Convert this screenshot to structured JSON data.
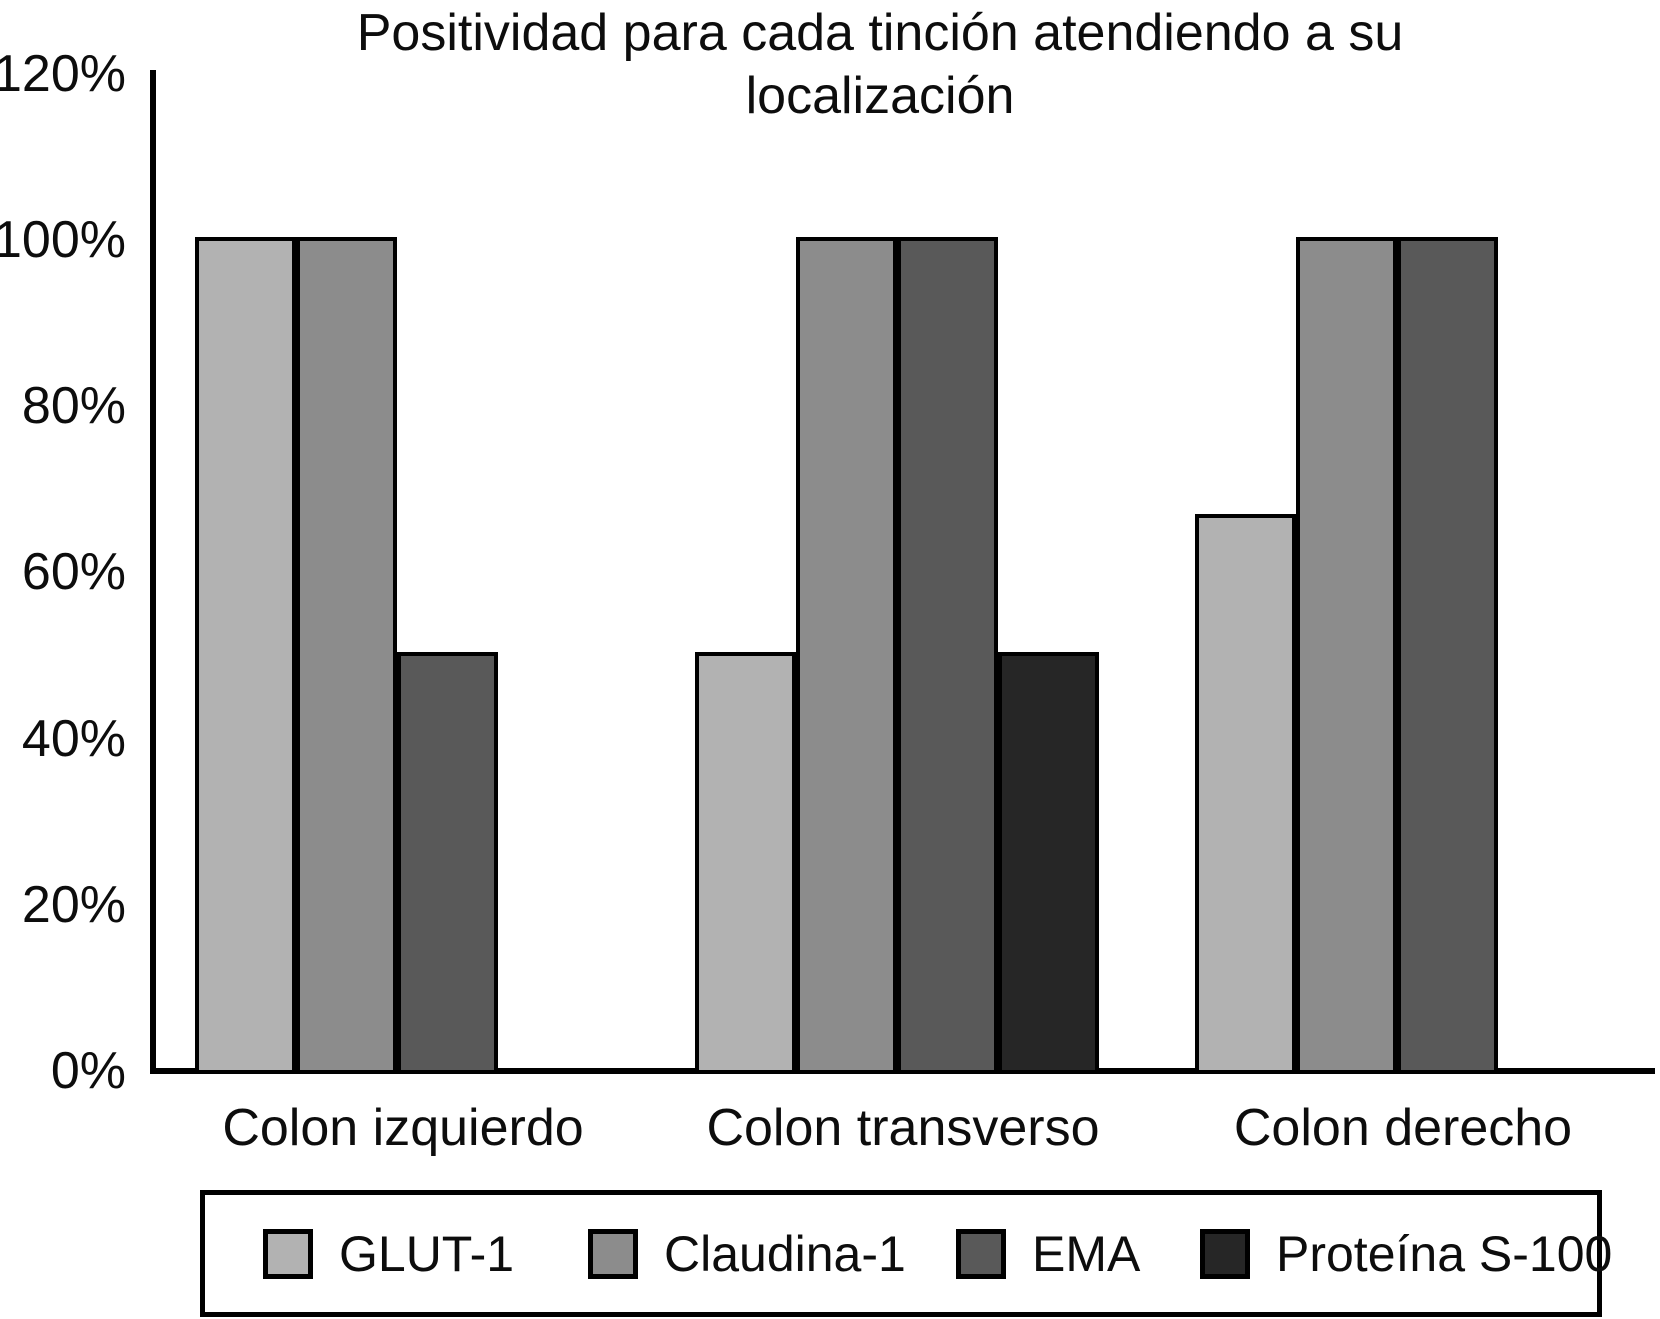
{
  "chart_data": {
    "type": "bar",
    "title": "Positividad para cada tinción atendiendo a su localización",
    "categories": [
      "Colon izquierdo",
      "Colon transverso",
      "Colon derecho"
    ],
    "series": [
      {
        "name": "GLUT-1",
        "color": "#b2b2b2",
        "values": [
          100,
          50,
          66.7
        ]
      },
      {
        "name": "Claudina-1",
        "color": "#8c8c8c",
        "values": [
          100,
          100,
          100
        ]
      },
      {
        "name": "EMA",
        "color": "#595959",
        "values": [
          50,
          100,
          100
        ]
      },
      {
        "name": "Proteína S-100",
        "color": "#262626",
        "values": [
          null,
          50,
          null
        ]
      }
    ],
    "y_axis": {
      "unit": "%",
      "min": 0,
      "max": 120,
      "tick_step": 20,
      "tick_labels": [
        "0%",
        "20%",
        "40%",
        "60%",
        "80%",
        "100%",
        "120%"
      ]
    },
    "xlabel": "",
    "ylabel": "",
    "grid": false,
    "legend_position": "bottom",
    "bar_outline_color": "#000000",
    "axis_color": "#000000",
    "background_color": "#ffffff"
  }
}
